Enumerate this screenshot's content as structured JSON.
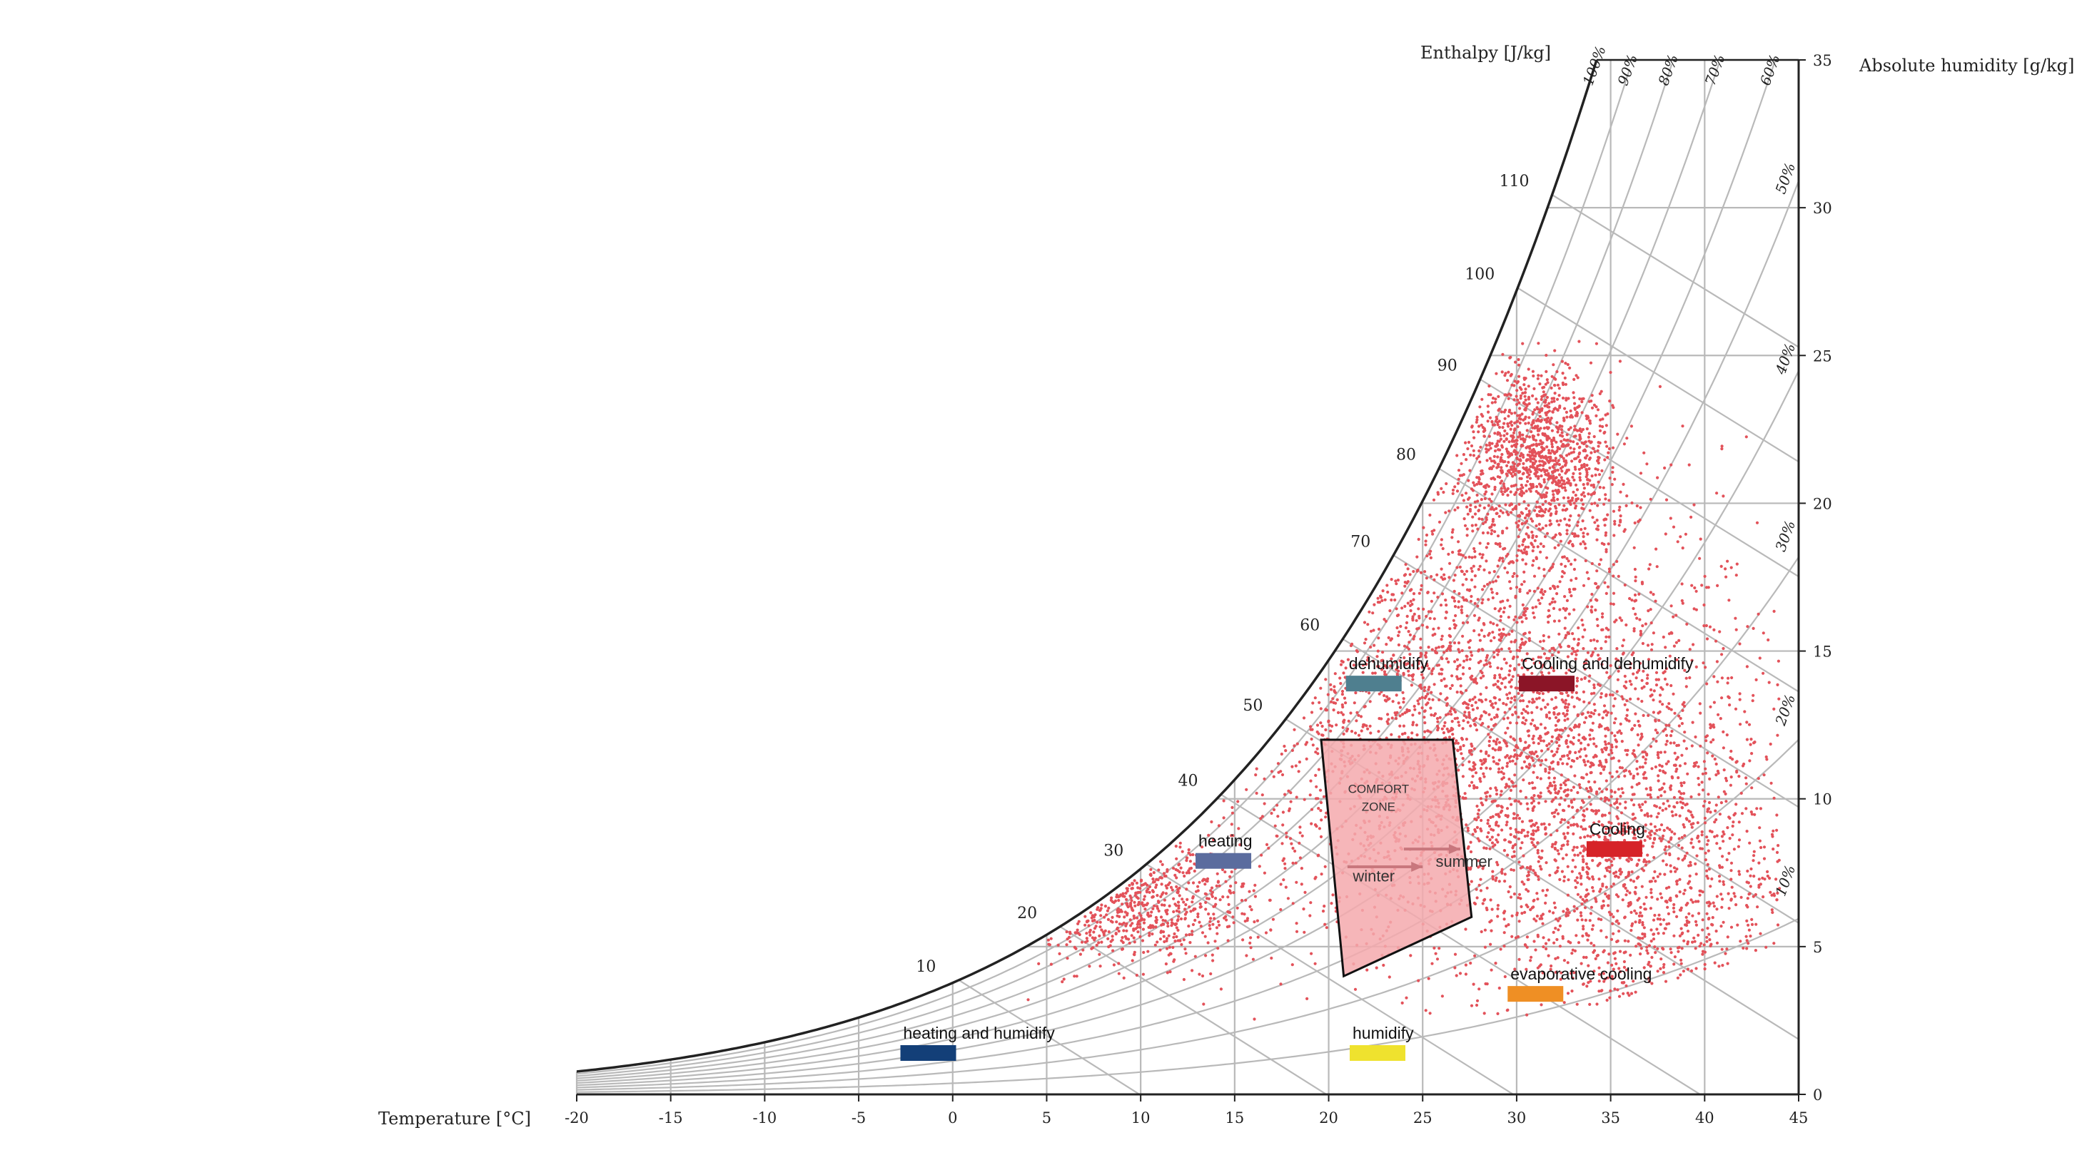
{
  "chart_data": {
    "type": "scatter",
    "title": "",
    "xlabel": "Temperature [°C]",
    "ylabel": "Absolute humidity [g/kg]",
    "enthalpy_label": "Enthalpy [J/kg]",
    "xlim": [
      -20,
      45
    ],
    "ylim": [
      0,
      35
    ],
    "x_ticks": [
      -20,
      -15,
      -10,
      -5,
      0,
      5,
      10,
      15,
      20,
      25,
      30,
      35,
      40,
      45
    ],
    "y_ticks": [
      0,
      5,
      10,
      15,
      20,
      25,
      30,
      35
    ],
    "enthalpy_ticks": [
      {
        "value": 10,
        "label": "10"
      },
      {
        "value": 20,
        "label": "20"
      },
      {
        "value": 30,
        "label": "30"
      },
      {
        "value": 40,
        "label": "40"
      },
      {
        "value": 50,
        "label": "50"
      },
      {
        "value": 60,
        "label": "60"
      },
      {
        "value": 70,
        "label": "70"
      },
      {
        "value": 80,
        "label": "80"
      },
      {
        "value": 90,
        "label": "90"
      },
      {
        "value": 100,
        "label": "100"
      },
      {
        "value": 110,
        "label": "110"
      }
    ],
    "rh_curves": [
      {
        "rh": 100,
        "label": "100%"
      },
      {
        "rh": 90,
        "label": "90%"
      },
      {
        "rh": 80,
        "label": "80%"
      },
      {
        "rh": 70,
        "label": "70%"
      },
      {
        "rh": 60,
        "label": "60%"
      },
      {
        "rh": 50,
        "label": "50%"
      },
      {
        "rh": 40,
        "label": "40%"
      },
      {
        "rh": 30,
        "label": "30%"
      },
      {
        "rh": 20,
        "label": "20%"
      },
      {
        "rh": 10,
        "label": "10%"
      }
    ],
    "comfort_zone": {
      "label_line1": "COMFORT",
      "label_line2": "ZONE",
      "winter_label": "winter",
      "summer_label": "summer",
      "polygon": [
        [
          19.6,
          12
        ],
        [
          26.6,
          12
        ],
        [
          27.6,
          6
        ],
        [
          20.8,
          4
        ]
      ],
      "fill": "#f4a9ad",
      "winter_arrow": {
        "from": [
          21,
          7.7
        ],
        "to": [
          25,
          7.7
        ]
      },
      "summer_arrow": {
        "from": [
          24,
          8.3
        ],
        "to": [
          27,
          8.3
        ]
      }
    },
    "regions": [
      {
        "label": "dehumidify",
        "x": 22.4,
        "y": 13.9,
        "color": "#4f7f8f"
      },
      {
        "label": "Cooling and dehumidify",
        "x": 31.6,
        "y": 13.9,
        "color": "#8b1527"
      },
      {
        "label": "heating",
        "x": 14.4,
        "y": 7.9,
        "color": "#5b6c9e"
      },
      {
        "label": "Cooling",
        "x": 35.2,
        "y": 8.3,
        "color": "#d62328"
      },
      {
        "label": "evaporative cooling",
        "x": 31.0,
        "y": 3.4,
        "color": "#ef8f24"
      },
      {
        "label": "humidify",
        "x": 22.6,
        "y": 1.4,
        "color": "#efe22e"
      },
      {
        "label": "heating and humidify",
        "x": -1.3,
        "y": 1.4,
        "color": "#133f78"
      }
    ],
    "scatter_series": {
      "name": "",
      "color": "#e3525a",
      "count": 6000,
      "clusters": [
        {
          "x": 31,
          "y": 21.5,
          "sx": 2.0,
          "sy": 1.6,
          "weight": 0.18
        },
        {
          "x": 9,
          "y": 6.5,
          "sx": 3.5,
          "sy": 1.0,
          "weight": 0.14
        },
        {
          "x": 24,
          "y": 12,
          "sx": 6,
          "sy": 3.5,
          "weight": 0.22
        },
        {
          "x": 33,
          "y": 11,
          "sx": 5.5,
          "sy": 4.5,
          "weight": 0.28
        },
        {
          "x": 38,
          "y": 7,
          "sx": 4,
          "sy": 3,
          "weight": 0.12
        },
        {
          "x": 27,
          "y": 17,
          "sx": 4,
          "sy": 3,
          "weight": 0.06
        }
      ]
    },
    "colors": {
      "grid": "#b9b9b9",
      "saturation": "#222222",
      "axis": "#222222"
    }
  }
}
